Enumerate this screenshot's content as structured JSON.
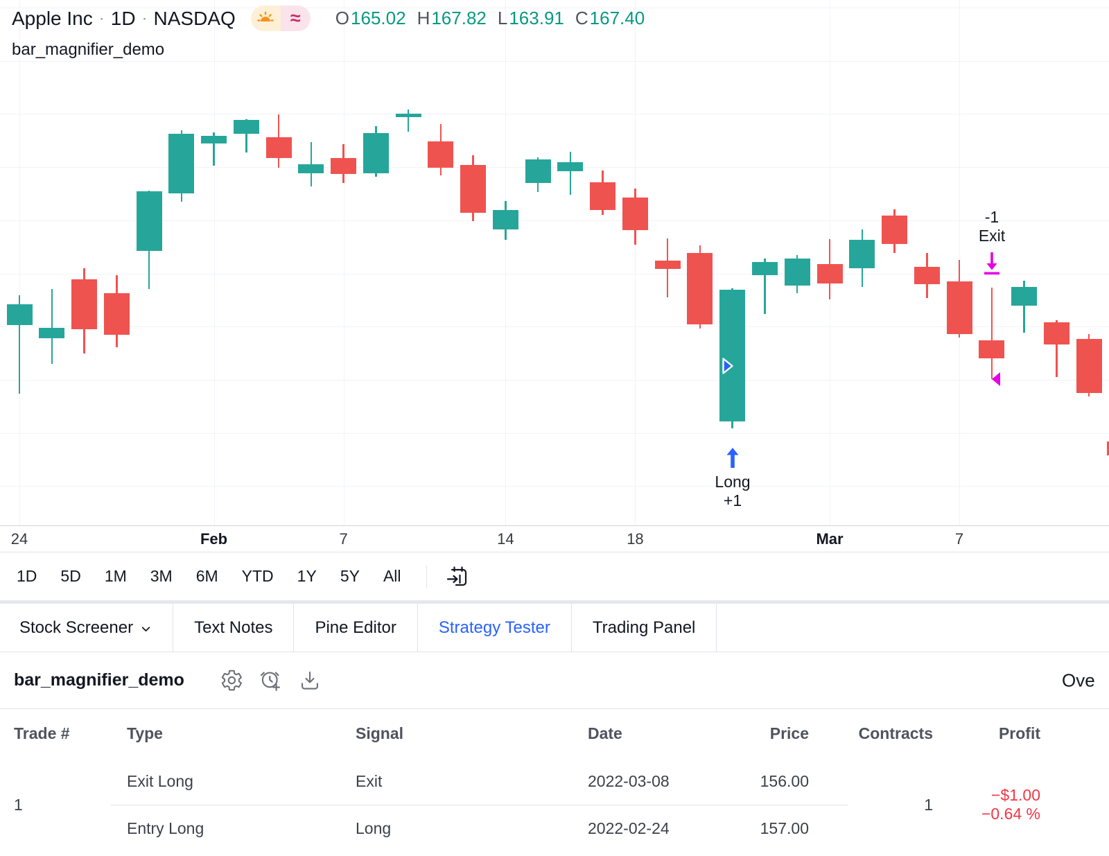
{
  "colors": {
    "accent_blue": "#2962ff",
    "up_candle": "#26a69a",
    "down_candle": "#ef5350",
    "ohlc_value": "#089981",
    "profit_negative": "#f23645",
    "entry_marker": "#2962ff",
    "exit_marker": "#e500e5",
    "grid": "#f0f3fa"
  },
  "header": {
    "symbol": "Apple Inc",
    "separator": "·",
    "interval": "1D",
    "exchange": "NASDAQ",
    "badges": {
      "market_status": "sunset-icon",
      "approx_glyph": "≈"
    },
    "ohlc": {
      "o_label": "O",
      "o": "165.02",
      "h_label": "H",
      "h": "167.82",
      "l_label": "L",
      "l": "163.91",
      "c_label": "C",
      "c": "167.40"
    },
    "script_name": "bar_magnifier_demo"
  },
  "chart_data": {
    "type": "candlestick",
    "title": "Apple Inc 1D NASDAQ",
    "grid": true,
    "up_color": "#26a69a",
    "down_color": "#ef5350",
    "x_axis_labels": [
      {
        "index": 0,
        "label": "24",
        "bold": false
      },
      {
        "index": 6,
        "label": "Feb",
        "bold": true
      },
      {
        "index": 10,
        "label": "7",
        "bold": false
      },
      {
        "index": 15,
        "label": "14",
        "bold": false
      },
      {
        "index": 19,
        "label": "18",
        "bold": false
      },
      {
        "index": 25,
        "label": "Mar",
        "bold": true
      },
      {
        "index": 29,
        "label": "7",
        "bold": false
      }
    ],
    "candles": [
      {
        "date": "2022-01-24",
        "o": 160.02,
        "h": 162.3,
        "l": 154.7,
        "c": 161.62
      },
      {
        "date": "2022-01-25",
        "o": 158.98,
        "h": 162.76,
        "l": 157.02,
        "c": 159.78
      },
      {
        "date": "2022-01-26",
        "o": 163.5,
        "h": 164.39,
        "l": 157.82,
        "c": 159.69
      },
      {
        "date": "2022-01-27",
        "o": 162.45,
        "h": 163.84,
        "l": 158.28,
        "c": 159.22
      },
      {
        "date": "2022-01-28",
        "o": 165.71,
        "h": 170.35,
        "l": 162.8,
        "c": 170.33
      },
      {
        "date": "2022-01-31",
        "o": 170.16,
        "h": 175.0,
        "l": 169.51,
        "c": 174.78
      },
      {
        "date": "2022-02-01",
        "o": 174.01,
        "h": 174.84,
        "l": 172.31,
        "c": 174.61
      },
      {
        "date": "2022-02-02",
        "o": 174.75,
        "h": 175.88,
        "l": 173.33,
        "c": 175.84
      },
      {
        "date": "2022-02-03",
        "o": 174.48,
        "h": 176.24,
        "l": 172.12,
        "c": 172.9
      },
      {
        "date": "2022-02-04",
        "o": 171.68,
        "h": 174.1,
        "l": 170.68,
        "c": 172.39
      },
      {
        "date": "2022-02-07",
        "o": 172.86,
        "h": 173.95,
        "l": 170.95,
        "c": 171.66
      },
      {
        "date": "2022-02-08",
        "o": 171.73,
        "h": 175.35,
        "l": 171.43,
        "c": 174.83
      },
      {
        "date": "2022-02-09",
        "o": 176.05,
        "h": 176.65,
        "l": 174.9,
        "c": 176.28
      },
      {
        "date": "2022-02-10",
        "o": 174.14,
        "h": 175.48,
        "l": 171.55,
        "c": 172.12
      },
      {
        "date": "2022-02-11",
        "o": 172.33,
        "h": 173.08,
        "l": 168.04,
        "c": 168.64
      },
      {
        "date": "2022-02-14",
        "o": 167.37,
        "h": 169.58,
        "l": 166.56,
        "c": 168.88
      },
      {
        "date": "2022-02-15",
        "o": 170.97,
        "h": 172.95,
        "l": 170.25,
        "c": 172.79
      },
      {
        "date": "2022-02-16",
        "o": 171.85,
        "h": 173.34,
        "l": 170.05,
        "c": 172.55
      },
      {
        "date": "2022-02-17",
        "o": 171.03,
        "h": 171.91,
        "l": 168.47,
        "c": 168.88
      },
      {
        "date": "2022-02-18",
        "o": 169.82,
        "h": 170.54,
        "l": 166.19,
        "c": 167.3
      },
      {
        "date": "2022-02-22",
        "o": 164.98,
        "h": 166.69,
        "l": 162.15,
        "c": 164.32
      },
      {
        "date": "2022-02-23",
        "o": 165.54,
        "h": 166.15,
        "l": 159.75,
        "c": 160.07
      },
      {
        "date": "2022-02-24",
        "o": 152.58,
        "h": 162.85,
        "l": 152.0,
        "c": 162.74
      },
      {
        "date": "2022-02-25",
        "o": 163.84,
        "h": 165.12,
        "l": 160.87,
        "c": 164.85
      },
      {
        "date": "2022-02-28",
        "o": 163.06,
        "h": 165.42,
        "l": 162.43,
        "c": 165.12
      },
      {
        "date": "2022-03-01",
        "o": 164.7,
        "h": 166.6,
        "l": 161.97,
        "c": 163.2
      },
      {
        "date": "2022-03-02",
        "o": 164.39,
        "h": 167.36,
        "l": 162.95,
        "c": 166.56
      },
      {
        "date": "2022-03-03",
        "o": 168.47,
        "h": 168.91,
        "l": 165.55,
        "c": 166.23
      },
      {
        "date": "2022-03-04",
        "o": 164.49,
        "h": 165.55,
        "l": 162.1,
        "c": 163.17
      },
      {
        "date": "2022-03-07",
        "o": 163.36,
        "h": 165.02,
        "l": 159.04,
        "c": 159.3
      },
      {
        "date": "2022-03-08",
        "o": 158.82,
        "h": 162.88,
        "l": 155.8,
        "c": 157.44
      },
      {
        "date": "2022-03-09",
        "o": 161.48,
        "h": 163.41,
        "l": 159.41,
        "c": 162.95
      },
      {
        "date": "2022-03-10",
        "o": 160.2,
        "h": 160.39,
        "l": 155.98,
        "c": 158.52
      },
      {
        "date": "2022-03-11",
        "o": 158.93,
        "h": 159.28,
        "l": 154.5,
        "c": 154.73
      }
    ],
    "markers": {
      "entry": {
        "lines": [
          "Long",
          "+1"
        ],
        "candle_index": 22,
        "date": "2022-02-24",
        "fill_price": 157.0,
        "direction": "up",
        "color": "#2962ff"
      },
      "exit": {
        "lines": [
          "-1",
          "Exit"
        ],
        "candle_index": 30,
        "date": "2022-03-08",
        "fill_price": 156.0,
        "direction": "down",
        "color": "#e500e5"
      }
    }
  },
  "toolbar": {
    "ranges": [
      "1D",
      "5D",
      "1M",
      "3M",
      "6M",
      "YTD",
      "1Y",
      "5Y",
      "All"
    ],
    "goto_date_icon": "calendar-arrow-icon"
  },
  "tabs": [
    {
      "label": "Stock Screener",
      "active": false,
      "has_chevron": true
    },
    {
      "label": "Text Notes",
      "active": false,
      "has_chevron": false
    },
    {
      "label": "Pine Editor",
      "active": false,
      "has_chevron": false
    },
    {
      "label": "Strategy Tester",
      "active": true,
      "has_chevron": false
    },
    {
      "label": "Trading Panel",
      "active": false,
      "has_chevron": false
    }
  ],
  "panel": {
    "title": "bar_magnifier_demo",
    "icons": [
      "settings-icon",
      "add-alert-icon",
      "export-icon"
    ],
    "overview_cut_text": "Ove"
  },
  "table": {
    "columns": [
      "Trade #",
      "Type",
      "Signal",
      "Date",
      "Price",
      "Contracts",
      "Profit"
    ],
    "trade": {
      "number": "1",
      "rows": [
        {
          "type": "Exit Long",
          "signal": "Exit",
          "date": "2022-03-08",
          "price": "156.00"
        },
        {
          "type": "Entry Long",
          "signal": "Long",
          "date": "2022-02-24",
          "price": "157.00"
        }
      ],
      "contracts": "1",
      "profit_usd": "−$1.00",
      "profit_pct": "−0.64 %"
    }
  }
}
